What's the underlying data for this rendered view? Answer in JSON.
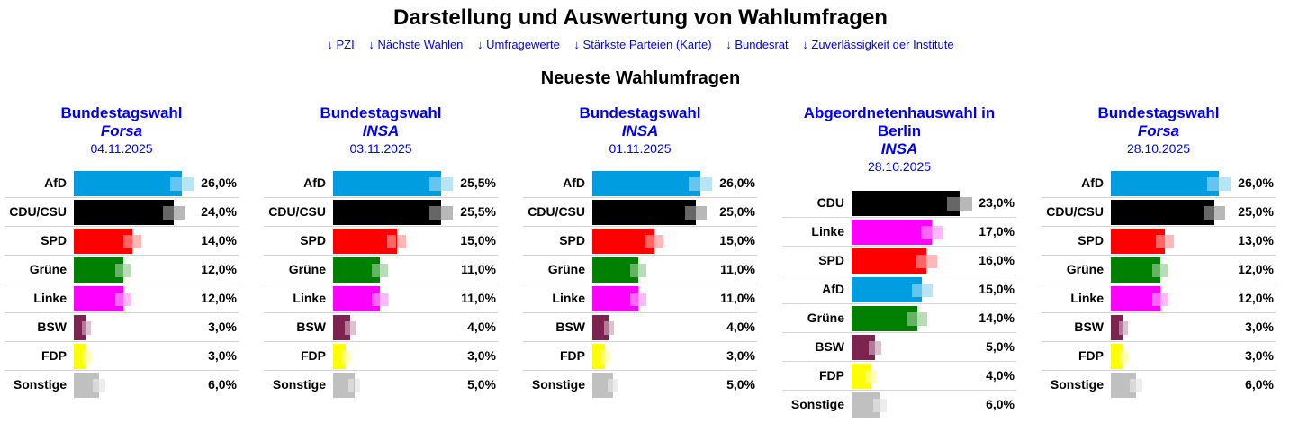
{
  "header": {
    "title": "Darstellung und Auswertung von Wahlumfragen",
    "nav": [
      {
        "icon": "arrow-down-icon",
        "glyph": "↓",
        "label": "PZI"
      },
      {
        "icon": "arrow-down-icon",
        "glyph": "↓",
        "label": "Nächste Wahlen"
      },
      {
        "icon": "arrow-down-icon",
        "glyph": "↓",
        "label": "Umfragewerte"
      },
      {
        "icon": "arrow-down-icon",
        "glyph": "↓",
        "label": "Stärkste Parteien (Karte)"
      },
      {
        "icon": "arrow-down-icon",
        "glyph": "↓",
        "label": "Bundesrat"
      },
      {
        "icon": "arrow-down-icon",
        "glyph": "↓",
        "label": "Zuverlässigkeit der Institute"
      }
    ],
    "subtitle": "Neueste Wahlumfragen"
  },
  "colors": {
    "link": "#0000ee",
    "AfD": "#009ee0",
    "CDU/CSU": "#000000",
    "CDU": "#000000",
    "SPD": "#ff0000",
    "Grüne": "#008000",
    "Linke": "#ff00ff",
    "BSW": "#7b2450",
    "FDP": "#ffff00",
    "Sonstige": "#c0c0c0"
  },
  "chart_data": [
    {
      "type": "bar",
      "title": "Bundestagswahl",
      "institute": "Forsa",
      "date": "04.11.2025",
      "categories": [
        "AfD",
        "CDU/CSU",
        "SPD",
        "Grüne",
        "Linke",
        "BSW",
        "FDP",
        "Sonstige"
      ],
      "values": [
        26.0,
        24.0,
        14.0,
        12.0,
        12.0,
        3.0,
        3.0,
        6.0
      ],
      "labels": [
        "26,0%",
        "24,0%",
        "14,0%",
        "12,0%",
        "12,0%",
        "3,0%",
        "3,0%",
        "6,0%"
      ],
      "unit": "%"
    },
    {
      "type": "bar",
      "title": "Bundestagswahl",
      "institute": "INSA",
      "date": "03.11.2025",
      "categories": [
        "AfD",
        "CDU/CSU",
        "SPD",
        "Grüne",
        "Linke",
        "BSW",
        "FDP",
        "Sonstige"
      ],
      "values": [
        25.5,
        25.5,
        15.0,
        11.0,
        11.0,
        4.0,
        3.0,
        5.0
      ],
      "labels": [
        "25,5%",
        "25,5%",
        "15,0%",
        "11,0%",
        "11,0%",
        "4,0%",
        "3,0%",
        "5,0%"
      ],
      "unit": "%"
    },
    {
      "type": "bar",
      "title": "Bundestagswahl",
      "institute": "INSA",
      "date": "01.11.2025",
      "categories": [
        "AfD",
        "CDU/CSU",
        "SPD",
        "Grüne",
        "Linke",
        "BSW",
        "FDP",
        "Sonstige"
      ],
      "values": [
        26.0,
        25.0,
        15.0,
        11.0,
        11.0,
        4.0,
        3.0,
        5.0
      ],
      "labels": [
        "26,0%",
        "25,0%",
        "15,0%",
        "11,0%",
        "11,0%",
        "4,0%",
        "3,0%",
        "5,0%"
      ],
      "unit": "%"
    },
    {
      "type": "bar",
      "title": "Abgeordnetenhauswahl in Berlin",
      "institute": "INSA",
      "date": "28.10.2025",
      "categories": [
        "CDU",
        "Linke",
        "SPD",
        "AfD",
        "Grüne",
        "BSW",
        "FDP",
        "Sonstige"
      ],
      "values": [
        23.0,
        17.0,
        16.0,
        15.0,
        14.0,
        5.0,
        4.0,
        6.0
      ],
      "labels": [
        "23,0%",
        "17,0%",
        "16,0%",
        "15,0%",
        "14,0%",
        "5,0%",
        "4,0%",
        "6,0%"
      ],
      "unit": "%"
    },
    {
      "type": "bar",
      "title": "Bundestagswahl",
      "institute": "Forsa",
      "date": "28.10.2025",
      "categories": [
        "AfD",
        "CDU/CSU",
        "SPD",
        "Grüne",
        "Linke",
        "BSW",
        "FDP",
        "Sonstige"
      ],
      "values": [
        26.0,
        25.0,
        13.0,
        12.0,
        12.0,
        3.0,
        3.0,
        6.0
      ],
      "labels": [
        "26,0%",
        "25,0%",
        "13,0%",
        "12,0%",
        "12,0%",
        "3,0%",
        "3,0%",
        "6,0%"
      ],
      "unit": "%"
    }
  ]
}
